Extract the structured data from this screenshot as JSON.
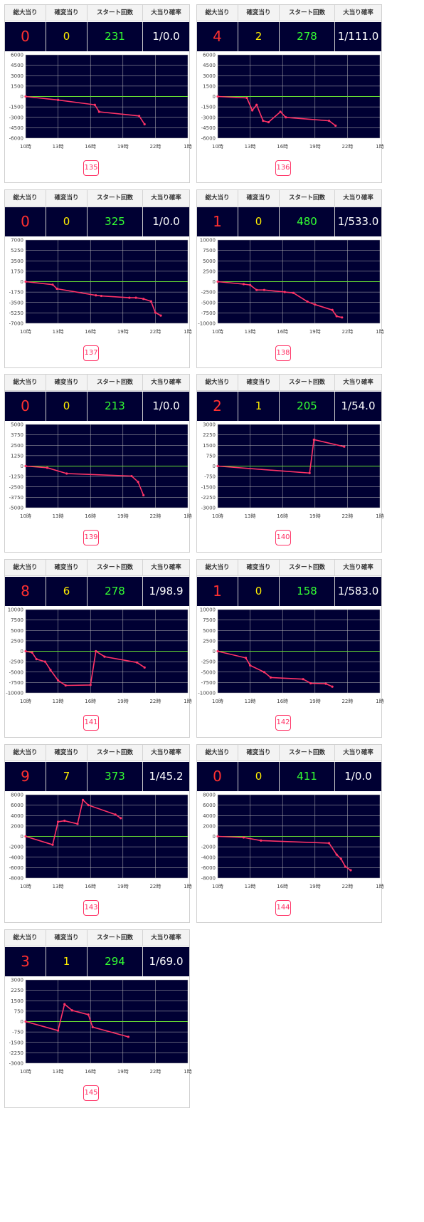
{
  "headers": [
    "総大当り",
    "確変当り",
    "スタート回数",
    "大当り確率"
  ],
  "x_ticks": [
    "10時",
    "13時",
    "16時",
    "19時",
    "22時",
    "1時"
  ],
  "colors": {
    "plot_bg": "#000033",
    "grid": "#bbbbbb",
    "zero_line": "#66dd33",
    "series": "#ff3366",
    "total": "#ff3030",
    "kakuhen": "#ffee00",
    "start": "#33ff33",
    "prob": "#ffffff"
  },
  "machines": [
    {
      "machine_no": "135",
      "total": "0",
      "kakuhen": "0",
      "start": "231",
      "prob": "1/0.0",
      "chart_data": {
        "type": "line",
        "ylim": [
          -6000,
          6000
        ],
        "y_ticks": [
          "6000",
          "4500",
          "3000",
          "1500",
          "0",
          "-1500",
          "-3000",
          "-4500",
          "-6000"
        ],
        "points": [
          [
            10.0,
            0
          ],
          [
            13.0,
            -500
          ],
          [
            16.4,
            -1200
          ],
          [
            16.8,
            -2200
          ],
          [
            20.5,
            -2800
          ],
          [
            21.0,
            -4000
          ]
        ]
      }
    },
    {
      "machine_no": "136",
      "total": "4",
      "kakuhen": "2",
      "start": "278",
      "prob": "1/111.0",
      "chart_data": {
        "type": "line",
        "ylim": [
          -6000,
          6000
        ],
        "y_ticks": [
          "6000",
          "4500",
          "3000",
          "1500",
          "0",
          "-1500",
          "-3000",
          "-4500",
          "-6000"
        ],
        "points": [
          [
            10.0,
            0
          ],
          [
            12.7,
            -200
          ],
          [
            13.2,
            -2000
          ],
          [
            13.6,
            -1200
          ],
          [
            14.2,
            -3500
          ],
          [
            14.7,
            -3700
          ],
          [
            15.8,
            -2200
          ],
          [
            16.3,
            -3000
          ],
          [
            20.3,
            -3500
          ],
          [
            20.9,
            -4200
          ]
        ]
      }
    },
    {
      "machine_no": "137",
      "total": "0",
      "kakuhen": "0",
      "start": "325",
      "prob": "1/0.0",
      "chart_data": {
        "type": "line",
        "ylim": [
          -7000,
          7000
        ],
        "y_ticks": [
          "7000",
          "5250",
          "3500",
          "1750",
          "0",
          "-1750",
          "-3500",
          "-5250",
          "-7000"
        ],
        "points": [
          [
            10.0,
            0
          ],
          [
            12.5,
            -500
          ],
          [
            12.9,
            -1200
          ],
          [
            16.5,
            -2300
          ],
          [
            17.0,
            -2400
          ],
          [
            19.6,
            -2700
          ],
          [
            20.2,
            -2700
          ],
          [
            20.9,
            -2900
          ],
          [
            21.6,
            -3300
          ],
          [
            22.0,
            -5200
          ],
          [
            22.5,
            -5700
          ]
        ]
      }
    },
    {
      "machine_no": "138",
      "total": "1",
      "kakuhen": "0",
      "start": "480",
      "prob": "1/533.0",
      "chart_data": {
        "type": "line",
        "ylim": [
          -10000,
          10000
        ],
        "y_ticks": [
          "10000",
          "7500",
          "5000",
          "2500",
          "0",
          "-2500",
          "-5000",
          "-7500",
          "-10000"
        ],
        "points": [
          [
            10.0,
            0
          ],
          [
            12.4,
            -600
          ],
          [
            13.0,
            -800
          ],
          [
            13.6,
            -2000
          ],
          [
            14.3,
            -2000
          ],
          [
            16.2,
            -2500
          ],
          [
            17.0,
            -2700
          ],
          [
            18.3,
            -4800
          ],
          [
            19.0,
            -5500
          ],
          [
            20.6,
            -6800
          ],
          [
            21.0,
            -8300
          ],
          [
            21.5,
            -8600
          ]
        ]
      }
    },
    {
      "machine_no": "139",
      "total": "0",
      "kakuhen": "0",
      "start": "213",
      "prob": "1/0.0",
      "chart_data": {
        "type": "line",
        "ylim": [
          -5000,
          5000
        ],
        "y_ticks": [
          "5000",
          "3750",
          "2500",
          "1250",
          "0",
          "-1250",
          "-2500",
          "-3750",
          "-5000"
        ],
        "points": [
          [
            10.0,
            0
          ],
          [
            12.0,
            -200
          ],
          [
            13.8,
            -900
          ],
          [
            19.8,
            -1200
          ],
          [
            20.4,
            -1900
          ],
          [
            20.9,
            -3500
          ]
        ]
      }
    },
    {
      "machine_no": "140",
      "total": "2",
      "kakuhen": "1",
      "start": "205",
      "prob": "1/54.0",
      "chart_data": {
        "type": "line",
        "ylim": [
          -3000,
          3000
        ],
        "y_ticks": [
          "3000",
          "2250",
          "1500",
          "750",
          "0",
          "-750",
          "-1500",
          "-2250",
          "-3000"
        ],
        "points": [
          [
            10.0,
            0
          ],
          [
            18.5,
            -500
          ],
          [
            18.9,
            1900
          ],
          [
            21.7,
            1400
          ]
        ]
      }
    },
    {
      "machine_no": "141",
      "total": "8",
      "kakuhen": "6",
      "start": "278",
      "prob": "1/98.9",
      "chart_data": {
        "type": "line",
        "ylim": [
          -10000,
          10000
        ],
        "y_ticks": [
          "10000",
          "7500",
          "5000",
          "2500",
          "0",
          "-2500",
          "-5000",
          "-7500",
          "-10000"
        ],
        "points": [
          [
            10.0,
            0
          ],
          [
            10.6,
            -300
          ],
          [
            11.0,
            -1900
          ],
          [
            11.8,
            -2500
          ],
          [
            12.3,
            -4500
          ],
          [
            13.0,
            -7000
          ],
          [
            13.7,
            -8200
          ],
          [
            16.0,
            -8100
          ],
          [
            16.5,
            0
          ],
          [
            17.3,
            -1300
          ],
          [
            20.3,
            -2700
          ],
          [
            21.0,
            -3900
          ]
        ]
      }
    },
    {
      "machine_no": "142",
      "total": "1",
      "kakuhen": "0",
      "start": "158",
      "prob": "1/583.0",
      "chart_data": {
        "type": "line",
        "ylim": [
          -10000,
          10000
        ],
        "y_ticks": [
          "10000",
          "7500",
          "5000",
          "2500",
          "0",
          "-2500",
          "-5000",
          "-7500",
          "-10000"
        ],
        "points": [
          [
            10.0,
            0
          ],
          [
            12.6,
            -1600
          ],
          [
            13.0,
            -3400
          ],
          [
            14.3,
            -5000
          ],
          [
            14.9,
            -6300
          ],
          [
            17.9,
            -6700
          ],
          [
            18.6,
            -7700
          ],
          [
            20.0,
            -7800
          ],
          [
            20.6,
            -8500
          ]
        ]
      }
    },
    {
      "machine_no": "143",
      "total": "9",
      "kakuhen": "7",
      "start": "373",
      "prob": "1/45.2",
      "chart_data": {
        "type": "line",
        "ylim": [
          -8000,
          8000
        ],
        "y_ticks": [
          "8000",
          "6000",
          "4000",
          "2000",
          "0",
          "-2000",
          "-4000",
          "-6000",
          "-8000"
        ],
        "points": [
          [
            10.0,
            0
          ],
          [
            12.5,
            -1600
          ],
          [
            13.0,
            2800
          ],
          [
            13.6,
            3000
          ],
          [
            14.8,
            2400
          ],
          [
            15.3,
            7000
          ],
          [
            15.8,
            6000
          ],
          [
            18.3,
            4200
          ],
          [
            18.8,
            3500
          ]
        ]
      }
    },
    {
      "machine_no": "144",
      "total": "0",
      "kakuhen": "0",
      "start": "411",
      "prob": "1/0.0",
      "chart_data": {
        "type": "line",
        "ylim": [
          -8000,
          8000
        ],
        "y_ticks": [
          "8000",
          "6000",
          "4000",
          "2000",
          "0",
          "-2000",
          "-4000",
          "-6000",
          "-8000"
        ],
        "points": [
          [
            10.0,
            0
          ],
          [
            12.4,
            -200
          ],
          [
            14.0,
            -800
          ],
          [
            20.3,
            -1300
          ],
          [
            21.0,
            -3500
          ],
          [
            21.4,
            -4300
          ],
          [
            21.8,
            -5800
          ],
          [
            22.3,
            -6500
          ]
        ]
      }
    },
    {
      "machine_no": "145",
      "total": "3",
      "kakuhen": "1",
      "start": "294",
      "prob": "1/69.0",
      "chart_data": {
        "type": "line",
        "ylim": [
          -3000,
          3000
        ],
        "y_ticks": [
          "3000",
          "2250",
          "1500",
          "750",
          "0",
          "-750",
          "-1500",
          "-2250",
          "-3000"
        ],
        "points": [
          [
            10.0,
            0
          ],
          [
            13.0,
            -650
          ],
          [
            13.6,
            1250
          ],
          [
            14.3,
            800
          ],
          [
            15.8,
            500
          ],
          [
            16.2,
            -400
          ],
          [
            19.5,
            -1100
          ]
        ]
      }
    }
  ]
}
